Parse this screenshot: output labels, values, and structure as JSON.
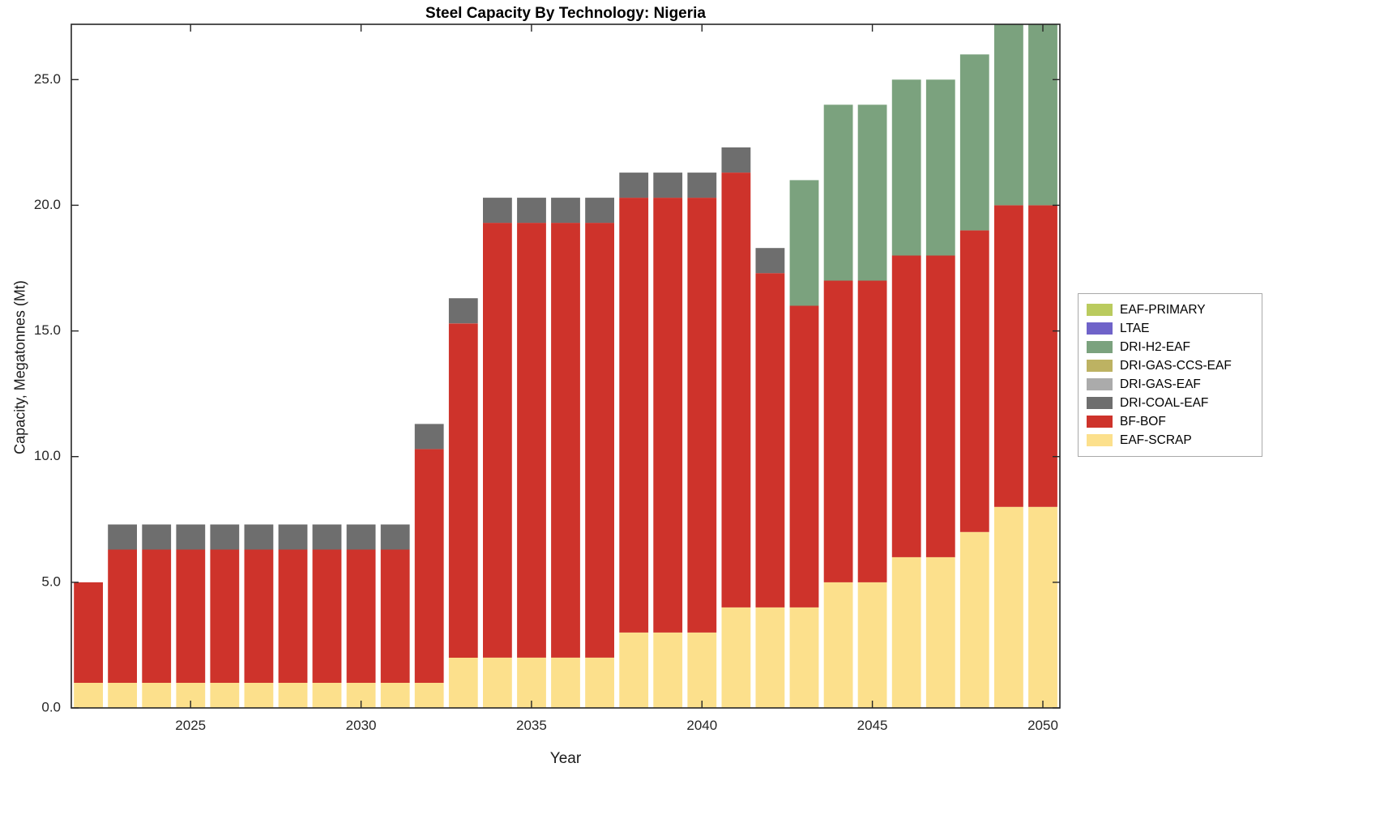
{
  "chart_data": {
    "type": "bar",
    "stacked": true,
    "title": "Steel Capacity By Technology: Nigeria",
    "xlabel": "Year",
    "ylabel": "Capacity, Megatonnes (Mt)",
    "categories": [
      2022,
      2023,
      2024,
      2025,
      2026,
      2027,
      2028,
      2029,
      2030,
      2031,
      2032,
      2033,
      2034,
      2035,
      2036,
      2037,
      2038,
      2039,
      2040,
      2041,
      2042,
      2043,
      2044,
      2045,
      2046,
      2047,
      2048,
      2049,
      2050
    ],
    "x_tick_values": [
      2025,
      2030,
      2035,
      2040,
      2045,
      2050
    ],
    "x_tick_labels": [
      "2025",
      "2030",
      "2035",
      "2040",
      "2045",
      "2050"
    ],
    "y_ticks": [
      0,
      5,
      10,
      15,
      20,
      25
    ],
    "y_tick_labels": [
      "0.0",
      "5.0",
      "10.0",
      "15.0",
      "20.0",
      "25.0"
    ],
    "ylim": [
      0,
      27.2
    ],
    "grid": false,
    "legend_position": "right-outside",
    "series": [
      {
        "name": "EAF-SCRAP",
        "color": "#FCE08C",
        "values": [
          1,
          1,
          1,
          1,
          1,
          1,
          1,
          1,
          1,
          1,
          1,
          2,
          2,
          2,
          2,
          2,
          3,
          3,
          3,
          4,
          4,
          4,
          5,
          5,
          6,
          6,
          7,
          8,
          8
        ]
      },
      {
        "name": "BF-BOF",
        "color": "#CE332B",
        "values": [
          4.0,
          5.3,
          5.3,
          5.3,
          5.3,
          5.3,
          5.3,
          5.3,
          5.3,
          5.3,
          9.3,
          13.3,
          17.3,
          17.3,
          17.3,
          17.3,
          17.3,
          17.3,
          17.3,
          17.3,
          13.3,
          12,
          12,
          12,
          12,
          12,
          12,
          12,
          12
        ]
      },
      {
        "name": "DRI-COAL-EAF",
        "color": "#6E6E6E",
        "values": [
          0,
          1,
          1,
          1,
          1,
          1,
          1,
          1,
          1,
          1,
          1,
          1,
          1,
          1,
          1,
          1,
          1,
          1,
          1,
          1,
          1,
          0,
          0,
          0,
          0,
          0,
          0,
          0,
          0
        ]
      },
      {
        "name": "DRI-GAS-EAF",
        "color": "#ABABAB",
        "values": [
          0,
          0,
          0,
          0,
          0,
          0,
          0,
          0,
          0,
          0,
          0,
          0,
          0,
          0,
          0,
          0,
          0,
          0,
          0,
          0,
          0,
          0,
          0,
          0,
          0,
          0,
          0,
          0,
          0
        ]
      },
      {
        "name": "DRI-GAS-CCS-EAF",
        "color": "#BDB262",
        "values": [
          0,
          0,
          0,
          0,
          0,
          0,
          0,
          0,
          0,
          0,
          0,
          0,
          0,
          0,
          0,
          0,
          0,
          0,
          0,
          0,
          0,
          0,
          0,
          0,
          0,
          0,
          0,
          0,
          0
        ]
      },
      {
        "name": "DRI-H2-EAF",
        "color": "#7BA27E",
        "values": [
          0,
          0,
          0,
          0,
          0,
          0,
          0,
          0,
          0,
          0,
          0,
          0,
          0,
          0,
          0,
          0,
          0,
          0,
          0,
          0,
          0,
          5,
          7,
          7,
          7,
          7,
          7,
          8,
          8
        ]
      },
      {
        "name": "LTAE",
        "color": "#6F63C9",
        "values": [
          0,
          0,
          0,
          0,
          0,
          0,
          0,
          0,
          0,
          0,
          0,
          0,
          0,
          0,
          0,
          0,
          0,
          0,
          0,
          0,
          0,
          0,
          0,
          0,
          0,
          0,
          0,
          0,
          0
        ]
      },
      {
        "name": "EAF-PRIMARY",
        "color": "#BACB5E",
        "values": [
          0,
          0,
          0,
          0,
          0,
          0,
          0,
          0,
          0,
          0,
          0,
          0,
          0,
          0,
          0,
          0,
          0,
          0,
          0,
          0,
          0,
          0,
          0,
          0,
          0,
          0,
          0,
          0,
          0
        ]
      }
    ],
    "legend_order": [
      "EAF-PRIMARY",
      "LTAE",
      "DRI-H2-EAF",
      "DRI-GAS-CCS-EAF",
      "DRI-GAS-EAF",
      "DRI-COAL-EAF",
      "BF-BOF",
      "EAF-SCRAP"
    ]
  }
}
